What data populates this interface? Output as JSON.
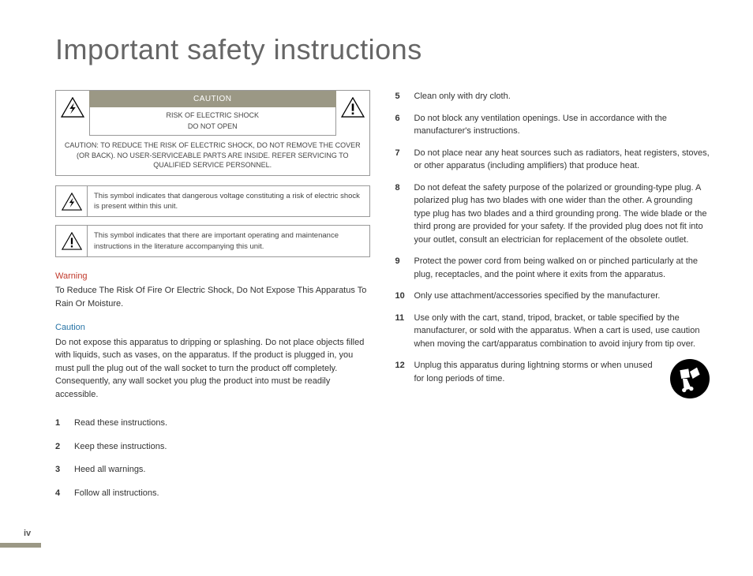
{
  "title": "Important safety instructions",
  "page_number": "iv",
  "caution_box": {
    "header": "CAUTION",
    "risk_line1": "RISK OF ELECTRIC SHOCK",
    "risk_line2": "DO NOT OPEN",
    "body": "CAUTION: TO REDUCE THE RISK OF ELECTRIC SHOCK, DO NOT REMOVE THE COVER (OR BACK). NO USER-SERVICEABLE PARTS ARE INSIDE. REFER SERVICING TO QUALIFIED SERVICE PERSONNEL."
  },
  "symbols": [
    {
      "icon": "bolt",
      "text": "This symbol indicates that dangerous voltage constituting a risk of electric shock is present within this unit."
    },
    {
      "icon": "excl",
      "text": "This symbol indicates that there are important operating and maintenance instructions in the literature accompanying this unit."
    }
  ],
  "warning": {
    "label": "Warning",
    "text": "To Reduce The Risk Of Fire Or Electric Shock, Do Not Expose This Apparatus To Rain Or Moisture."
  },
  "caution": {
    "label": "Caution",
    "text": "Do not expose this apparatus to dripping or splashing. Do not place objects filled with liquids, such as vases, on the apparatus. If the product is plugged in, you must pull the plug out of the wall socket to turn the product off completely. Consequently, any wall socket you plug the product into must be readily accessible."
  },
  "list_left": [
    {
      "n": "1",
      "t": "Read these instructions."
    },
    {
      "n": "2",
      "t": "Keep these instructions."
    },
    {
      "n": "3",
      "t": "Heed all warnings."
    },
    {
      "n": "4",
      "t": "Follow all instructions."
    }
  ],
  "list_right": [
    {
      "n": "5",
      "t": "Clean only with dry cloth."
    },
    {
      "n": "6",
      "t": "Do not block any ventilation openings. Use in accordance with the manufacturer's instructions."
    },
    {
      "n": "7",
      "t": "Do not place near any heat sources such as radiators, heat registers, stoves, or other apparatus (including amplifiers) that produce heat."
    },
    {
      "n": "8",
      "t": "Do not defeat the safety purpose of the polarized or grounding-type plug. A polarized plug has two blades with one wider than the other. A grounding type plug has two blades and a third grounding prong. The wide blade or the third prong are provided for your safety. If the provided plug does not fit into your outlet, consult an electrician for replacement of the obsolete outlet."
    },
    {
      "n": "9",
      "t": "Protect the power cord from being walked on or pinched particularly at the plug, receptacles, and the point where it exits from the apparatus."
    },
    {
      "n": "10",
      "t": "Only use attachment/accessories specified by the manufacturer."
    },
    {
      "n": "11",
      "t": "Use only with the cart, stand, tripod, bracket, or table specified by the manufacturer, or sold with the apparatus. When a cart is used, use caution when moving the cart/apparatus combination to avoid injury from tip over."
    },
    {
      "n": "12",
      "t": "Unplug this apparatus during lightning storms or when unused for long periods of time.",
      "cart": true
    }
  ],
  "colors": {
    "beige": "#9b9885",
    "red": "#c1392b",
    "blue": "#2874a6",
    "text": "#333",
    "border": "#999"
  }
}
